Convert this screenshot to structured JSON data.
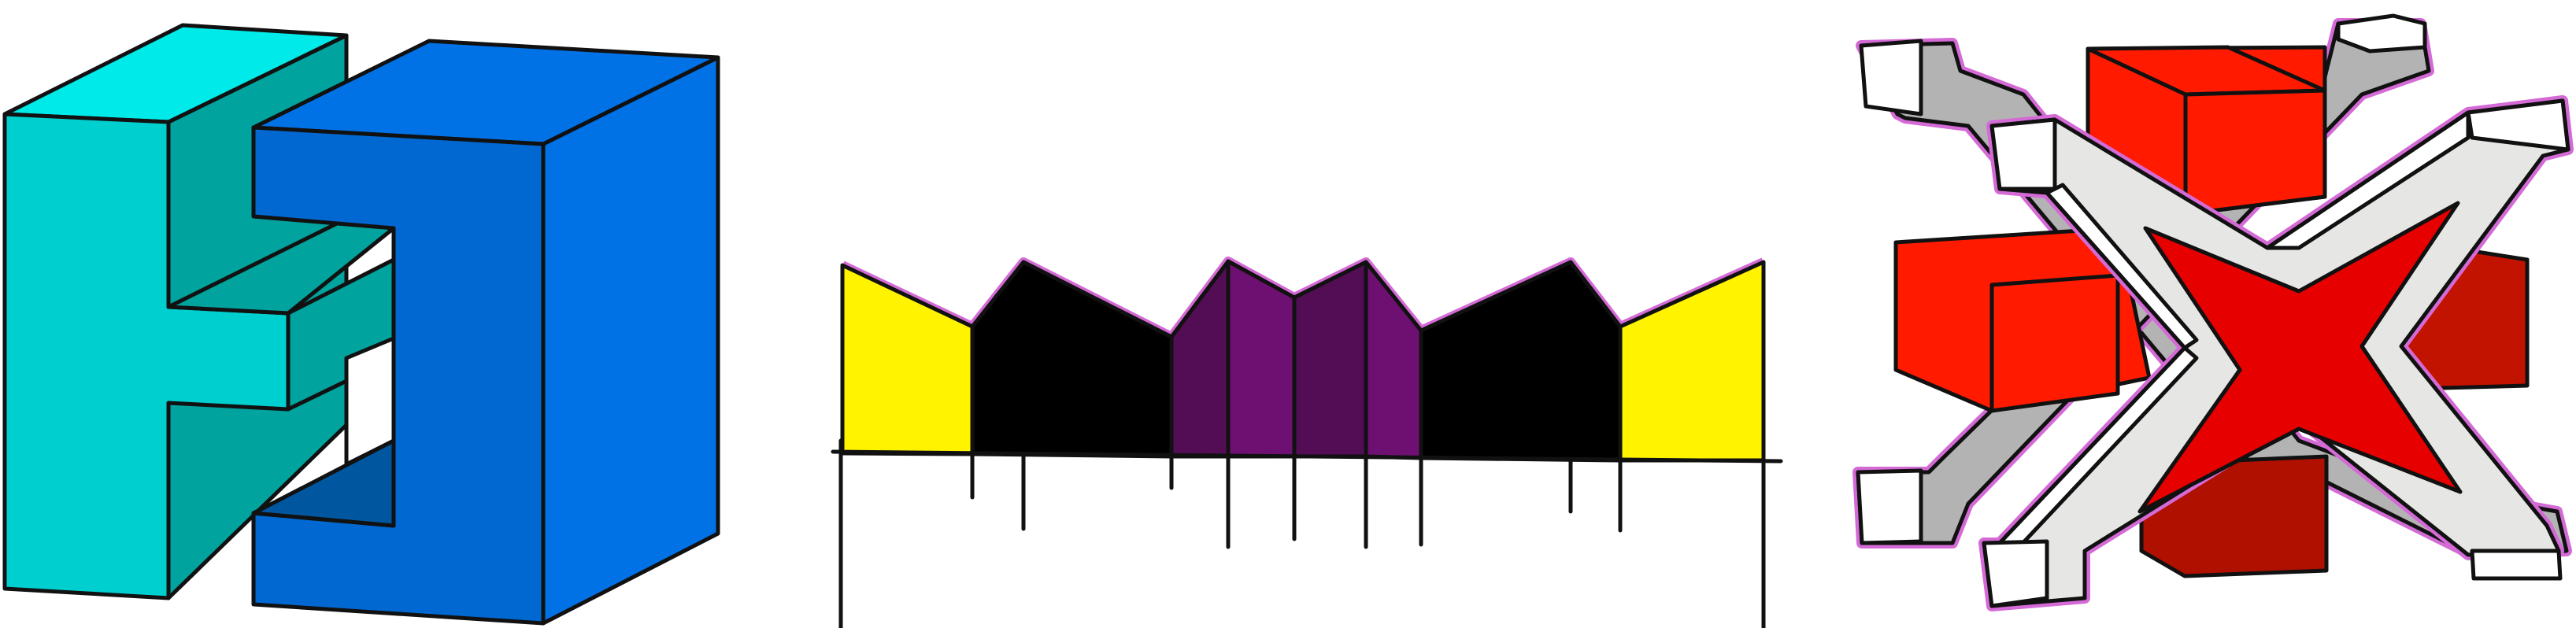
{
  "figures": [
    {
      "name": "isometric-letter-h-block-figure",
      "colors": {
        "light": "#00cfcf",
        "top": "#00eaea",
        "side": "#00a39e"
      }
    },
    {
      "name": "isometric-bracket-block-figure",
      "colors": {
        "front": "#0068d0",
        "top": "#0072e6",
        "inner": "#00569f"
      }
    },
    {
      "name": "folded-paper-ribbon-figure",
      "colors": {
        "yellow": "#fff300",
        "black": "#000000",
        "purple": "#6e1071",
        "dark-purple": "#520d55",
        "outline": "#d46ad6"
      }
    },
    {
      "name": "isometric-x-cross-figure",
      "colors": {
        "red": "#ff1a00",
        "dark-red": "#c21200",
        "gray": "#b3b3b3",
        "white": "#ffffff",
        "light-gray": "#e6e6e4",
        "outline": "#d46ad6"
      }
    }
  ]
}
